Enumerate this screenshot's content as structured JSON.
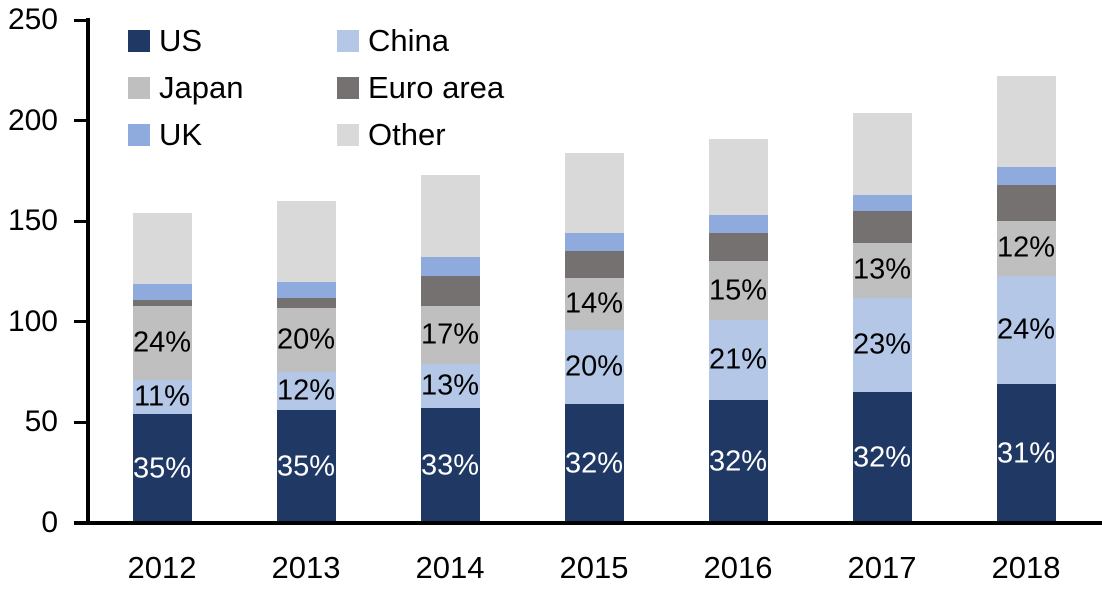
{
  "chart_data": {
    "type": "bar",
    "stacked": true,
    "title": "",
    "categories": [
      "2012",
      "2013",
      "2014",
      "2015",
      "2016",
      "2017",
      "2018"
    ],
    "series": [
      {
        "name": "US",
        "color": "#1f3864",
        "values": [
          54,
          56,
          57,
          59,
          61,
          65,
          69
        ],
        "segment_labels": [
          "35%",
          "35%",
          "33%",
          "32%",
          "32%",
          "32%",
          "31%"
        ],
        "label_color": "#ffffff"
      },
      {
        "name": "China",
        "color": "#b4c7e7",
        "values": [
          17,
          19,
          22,
          37,
          40,
          47,
          54
        ],
        "segment_labels": [
          "11%",
          "12%",
          "13%",
          "20%",
          "21%",
          "23%",
          "24%"
        ],
        "label_color": "#000000"
      },
      {
        "name": "Japan",
        "color": "#bfbfbf",
        "values": [
          37,
          32,
          29,
          26,
          29,
          27,
          27
        ],
        "segment_labels": [
          "24%",
          "20%",
          "17%",
          "14%",
          "15%",
          "13%",
          "12%"
        ],
        "label_color": "#000000"
      },
      {
        "name": "Euro area",
        "color": "#767171",
        "values": [
          3,
          5,
          15,
          13,
          14,
          16,
          18
        ],
        "segment_labels": null,
        "label_color": null
      },
      {
        "name": "UK",
        "color": "#8faadc",
        "values": [
          8,
          8,
          9,
          9,
          9,
          8,
          9
        ],
        "segment_labels": null,
        "label_color": null
      },
      {
        "name": "Other",
        "color": "#d9d9d9",
        "values": [
          35,
          40,
          41,
          40,
          38,
          41,
          45
        ],
        "segment_labels": null,
        "label_color": null
      }
    ],
    "totals": [
      154,
      160,
      173,
      184,
      191,
      204,
      222
    ],
    "y_axis": {
      "min": 0,
      "max": 250,
      "tick_step": 50,
      "tick_labels": [
        "0",
        "50",
        "100",
        "150",
        "200",
        "250"
      ]
    },
    "x_axis": {
      "tick_labels": [
        "2012",
        "2013",
        "2014",
        "2015",
        "2016",
        "2017",
        "2018"
      ]
    },
    "legend": {
      "position": "top-left",
      "columns": 2,
      "items": [
        "US",
        "China",
        "Japan",
        "Euro area",
        "UK",
        "Other"
      ]
    },
    "grid": false,
    "axis_color": "#000000",
    "text_color": "#000000"
  }
}
